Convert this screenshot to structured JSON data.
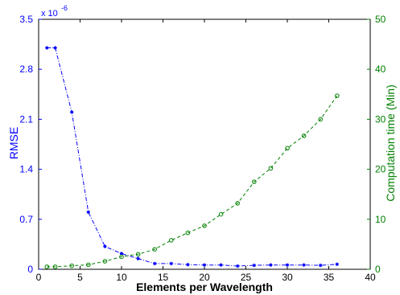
{
  "chart_data": {
    "type": "line",
    "title": "",
    "xlabel": "Elements per Wavelength",
    "xlim": [
      0,
      40
    ],
    "x_ticks": [
      "0",
      "5",
      "10",
      "15",
      "20",
      "25",
      "30",
      "35",
      "40"
    ],
    "y_left": {
      "label": "RMSE",
      "exponent_label": "x 10",
      "exponent_power": "-6",
      "lim": [
        0,
        3.5
      ],
      "ticks": [
        "0",
        "0.7",
        "1.4",
        "2.1",
        "2.8",
        "3.5"
      ],
      "color": "#0000ff"
    },
    "y_right": {
      "label": "Computation time (Min)",
      "lim": [
        0,
        50
      ],
      "ticks": [
        "0",
        "10",
        "20",
        "30",
        "40",
        "50"
      ],
      "color": "#008000"
    },
    "grid": false,
    "legend": "none",
    "series": [
      {
        "axis": "left",
        "color": "#0000ff",
        "marker": "star",
        "line": "dash-dot",
        "x": [
          1,
          2,
          4,
          6,
          8,
          10,
          12,
          14,
          16,
          18,
          20,
          22,
          24,
          26,
          28,
          30,
          32,
          34,
          36
        ],
        "y": [
          3.1,
          3.1,
          2.2,
          0.8,
          0.32,
          0.22,
          0.15,
          0.08,
          0.08,
          0.065,
          0.06,
          0.06,
          0.045,
          0.055,
          0.06,
          0.06,
          0.06,
          0.055,
          0.07
        ]
      },
      {
        "axis": "right",
        "color": "#008000",
        "marker": "circle",
        "line": "dash",
        "x": [
          1,
          2,
          4,
          6,
          8,
          10,
          12,
          14,
          16,
          18,
          20,
          22,
          24,
          26,
          28,
          30,
          32,
          34,
          36
        ],
        "y": [
          0.5,
          0.5,
          0.7,
          0.9,
          1.6,
          2.5,
          3.0,
          4.0,
          5.8,
          7.3,
          8.7,
          11.0,
          13.2,
          17.5,
          20.2,
          24.2,
          26.7,
          30.0,
          34.7
        ]
      }
    ]
  }
}
